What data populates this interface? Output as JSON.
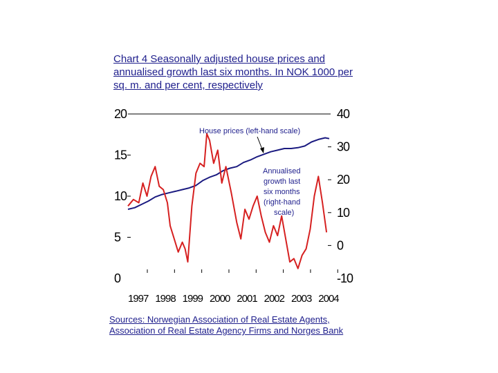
{
  "title": "Chart 4 Seasonally adjusted house prices and annualised growth last six months. In NOK 1000 per sq. m. and per cent, respectively",
  "sources": "Sources: Norwegian Association of Real Estate Agents, Association of Real Estate Agency Firms and Norges Bank",
  "colors": {
    "house_prices": "#1a1a80",
    "growth": "#d62020",
    "text": "#1e1e8c"
  },
  "chart_data": {
    "type": "line",
    "title": "Chart 4 Seasonally adjusted house prices and annualised growth last six months. In NOK 1000 per sq. m. and per cent, respectively",
    "xlim": [
      1997,
      2004.4
    ],
    "x_ticks": [
      "1997",
      "1998",
      "1999",
      "2000",
      "2001",
      "2002",
      "2003",
      "2004"
    ],
    "left_axis": {
      "ylim": [
        0,
        20
      ],
      "ticks": [
        0,
        5,
        10,
        15,
        20
      ]
    },
    "right_axis": {
      "ylim": [
        -10,
        40
      ],
      "ticks": [
        -10,
        0,
        10,
        20,
        30,
        40
      ]
    },
    "grid": false,
    "annotations": [
      {
        "text": "House prices (left-hand scale)",
        "series": "House prices (left-hand scale)"
      },
      {
        "text": "Annualised growth last six months (right-hand scale)",
        "series": "Annualised growth last six months (right-hand scale)"
      }
    ],
    "series": [
      {
        "name": "House prices (left-hand scale)",
        "axis": "left",
        "x": [
          1997.0,
          1997.25,
          1997.5,
          1997.75,
          1998.0,
          1998.25,
          1998.5,
          1998.75,
          1999.0,
          1999.25,
          1999.5,
          1999.75,
          2000.0,
          2000.25,
          2000.5,
          2000.75,
          2001.0,
          2001.25,
          2001.5,
          2001.75,
          2002.0,
          2002.25,
          2002.5,
          2002.75,
          2003.0,
          2003.25,
          2003.5,
          2003.75,
          2004.0,
          2004.25,
          2004.4
        ],
        "y": [
          8.4,
          8.6,
          9.0,
          9.4,
          9.9,
          10.2,
          10.4,
          10.6,
          10.8,
          11.0,
          11.3,
          11.9,
          12.3,
          12.6,
          13.1,
          13.4,
          13.6,
          14.1,
          14.4,
          14.8,
          15.1,
          15.4,
          15.6,
          15.8,
          15.8,
          15.9,
          16.1,
          16.6,
          16.9,
          17.1,
          17.0
        ]
      },
      {
        "name": "Annualised growth last six months (right-hand scale)",
        "axis": "right",
        "x": [
          1997.0,
          1997.2,
          1997.4,
          1997.55,
          1997.7,
          1997.85,
          1998.0,
          1998.15,
          1998.3,
          1998.45,
          1998.55,
          1998.7,
          1998.85,
          1999.0,
          1999.1,
          1999.2,
          1999.35,
          1999.5,
          1999.65,
          1999.8,
          1999.9,
          2000.0,
          2000.15,
          2000.3,
          2000.45,
          2000.6,
          2000.8,
          2001.0,
          2001.15,
          2001.3,
          2001.45,
          2001.6,
          2001.75,
          2001.9,
          2002.05,
          2002.2,
          2002.35,
          2002.5,
          2002.65,
          2002.8,
          2002.95,
          2003.1,
          2003.25,
          2003.4,
          2003.55,
          2003.7,
          2003.85,
          2004.0,
          2004.15,
          2004.3
        ],
        "y": [
          12,
          14,
          13,
          19,
          15,
          21,
          24,
          18,
          17,
          13,
          6,
          2,
          -2,
          1,
          -1,
          -5,
          12,
          22,
          25,
          24,
          34,
          32,
          25,
          29,
          19,
          24,
          16,
          7,
          2,
          11,
          8,
          12,
          15,
          9,
          4,
          1,
          6,
          3,
          9,
          2,
          -5,
          -4,
          -7,
          -3,
          -1,
          5,
          15,
          21,
          13,
          4
        ]
      }
    ]
  }
}
